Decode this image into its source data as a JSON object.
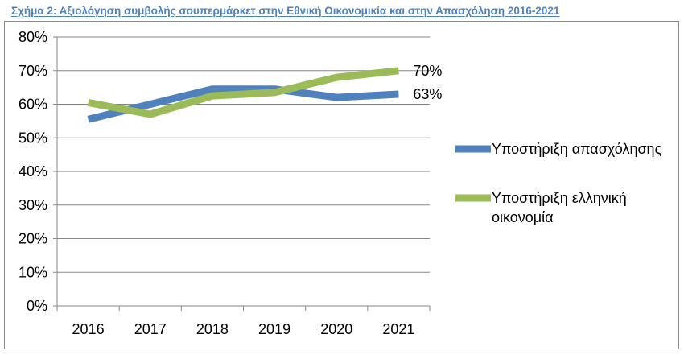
{
  "figure": {
    "title": "Σχήμα 2: Αξιολόγηση συμβολής σουπερμάρκετ στην Εθνική Οικονομικία και στην Απασχόληση 2016-2021"
  },
  "chart_data": {
    "type": "line",
    "title": "Σχήμα 2: Αξιολόγηση συμβολής σουπερμάρκετ στην Εθνική Οικονομικία και στην Απασχόληση 2016-2021",
    "xlabel": "",
    "ylabel": "",
    "x": [
      "2016",
      "2017",
      "2018",
      "2019",
      "2020",
      "2021"
    ],
    "ylim": [
      0,
      80
    ],
    "yticks": [
      0,
      10,
      20,
      30,
      40,
      50,
      60,
      70,
      80
    ],
    "ytick_labels": [
      "0%",
      "10%",
      "20%",
      "30%",
      "40%",
      "50%",
      "60%",
      "70%",
      "80%"
    ],
    "grid": true,
    "legend_position": "right",
    "series": [
      {
        "name": "Υποστήριξη απασχόλησης",
        "legend_lines": [
          "Υποστήριξη απασχόλησης"
        ],
        "color": "#4f81bd",
        "values": [
          55.5,
          60,
          64.5,
          64.5,
          62,
          63
        ],
        "end_label": "63%"
      },
      {
        "name": "Υποστήριξη ελληνική οικονομία",
        "legend_lines": [
          "Υποστήριξη ελληνική",
          "οικονομία"
        ],
        "color": "#9bbb59",
        "values": [
          60.5,
          57,
          62.5,
          63.5,
          68,
          70
        ],
        "end_label": "70%"
      }
    ]
  }
}
